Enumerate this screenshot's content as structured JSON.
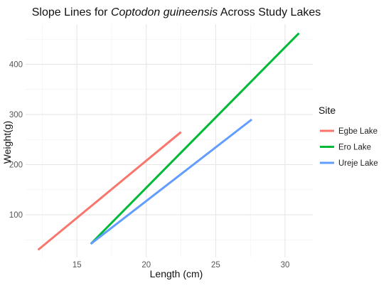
{
  "chart_data": {
    "type": "line",
    "title_parts": [
      {
        "text": "Slope Lines for ",
        "italic": false
      },
      {
        "text": "Coptodon guineensis",
        "italic": true
      },
      {
        "text": " Across Study Lakes",
        "italic": false
      }
    ],
    "xlabel": "Length (cm)",
    "ylabel": "Weight(g)",
    "xlim": [
      11.3,
      32.0
    ],
    "ylim": [
      15,
      480
    ],
    "x_ticks": [
      15,
      20,
      25,
      30
    ],
    "y_ticks": [
      100,
      200,
      300,
      400
    ],
    "x_minor_ticks": [
      12.5,
      17.5,
      22.5,
      27.5
    ],
    "y_minor_ticks": [
      50,
      150,
      250,
      350,
      450
    ],
    "grid": true,
    "legend": {
      "title": "Site",
      "position": "right"
    },
    "series": [
      {
        "name": "Egbe Lake",
        "color": "#F8766D",
        "x": [
          12.2,
          22.5
        ],
        "y": [
          30,
          265
        ]
      },
      {
        "name": "Ero Lake",
        "color": "#00BA38",
        "x": [
          16.0,
          31.0
        ],
        "y": [
          42,
          462
        ]
      },
      {
        "name": "Ureje Lake",
        "color": "#619CFF",
        "x": [
          16.0,
          27.6
        ],
        "y": [
          42,
          290
        ]
      }
    ]
  }
}
